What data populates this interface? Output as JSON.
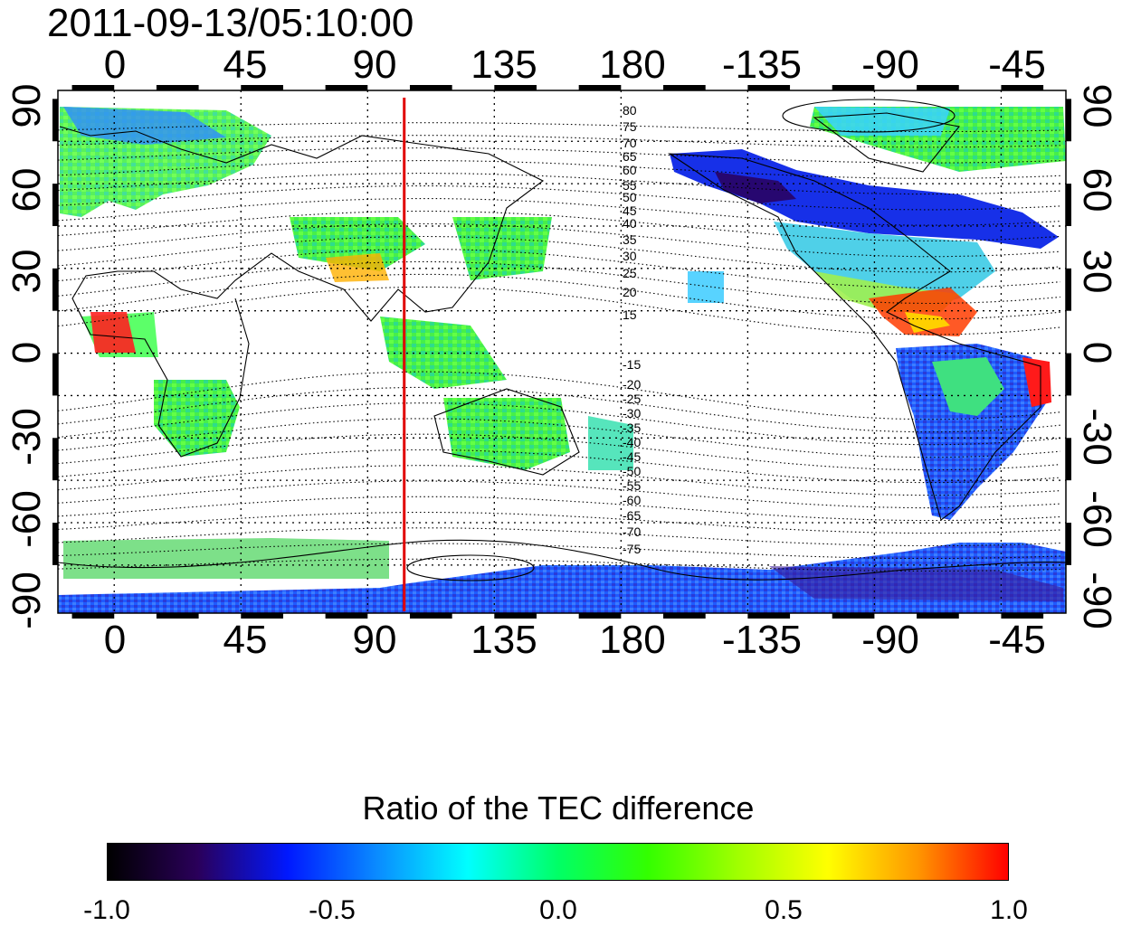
{
  "timestamp": "2011-09-13/05:10:00",
  "map": {
    "lon_labels": [
      "0",
      "45",
      "90",
      "135",
      "180",
      "-135",
      "-90",
      "-45"
    ],
    "lon_values": [
      0,
      45,
      90,
      135,
      180,
      225,
      270,
      315
    ],
    "lat_labels": [
      "90",
      "60",
      "30",
      "0",
      "-30",
      "-60",
      "-90"
    ],
    "lat_values": [
      90,
      60,
      30,
      0,
      -30,
      -60,
      -90
    ],
    "lon_range": [
      -20,
      338
    ],
    "lat_range": [
      -92,
      93
    ],
    "red_line_lon": 103,
    "contour_labels": [
      "80",
      "75",
      "70",
      "65",
      "60",
      "55",
      "50",
      "45",
      "40",
      "35",
      "30",
      "25",
      "20",
      "15",
      "-15",
      "-20",
      "-25",
      "-30",
      "-35",
      "-40",
      "-45",
      "-50",
      "-55",
      "-60",
      "-65",
      "-70",
      "-75"
    ]
  },
  "colorbar": {
    "title": "Ratio of the TEC difference",
    "ticks": [
      "-1.0",
      "-0.5",
      "0.0",
      "0.5",
      "1.0"
    ],
    "tick_values": [
      -1.0,
      -0.5,
      0.0,
      0.5,
      1.0
    ],
    "range": [
      -1.0,
      1.0
    ],
    "stops": [
      "#000000",
      "#2a005a",
      "#0018ff",
      "#0a8cff",
      "#00ffff",
      "#00ff66",
      "#33ff00",
      "#a0ff00",
      "#ffff00",
      "#ff9600",
      "#ff0000"
    ]
  },
  "colors": {
    "frame": "#000000",
    "grid": "#000000",
    "red_line": "#e00000"
  }
}
